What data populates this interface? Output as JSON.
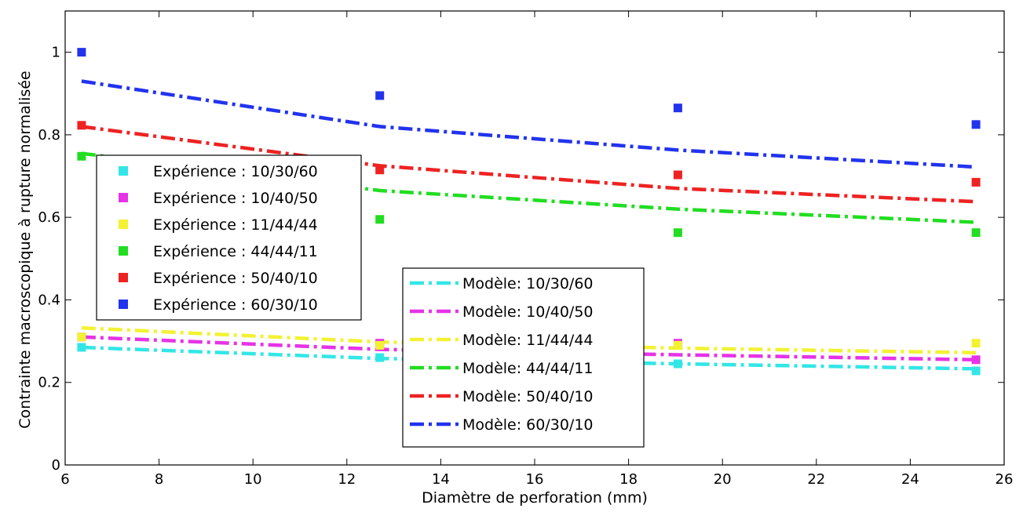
{
  "chart_data": {
    "type": "scatter",
    "title": "",
    "xlabel": "Diamètre de perforation (mm)",
    "ylabel": "Contrainte macroscopique à rupture normalisée",
    "xlim": [
      6,
      26
    ],
    "ylim": [
      0,
      1.1
    ],
    "xticks": [
      6,
      8,
      10,
      12,
      14,
      16,
      18,
      20,
      22,
      24,
      26
    ],
    "yticks": [
      0,
      0.2,
      0.4,
      0.6,
      0.8,
      1
    ],
    "ytick_labels": [
      "0",
      "0.2",
      "0.4",
      "0.6",
      "0.8",
      "1"
    ],
    "grid": false,
    "x": [
      6.35,
      12.7,
      19.05,
      25.4
    ],
    "experiment_series": [
      {
        "name": "Expérience : 10/30/60",
        "color": "#33e6e6",
        "values": [
          0.285,
          0.26,
          0.245,
          0.228
        ]
      },
      {
        "name": "Expérience : 10/40/50",
        "color": "#e633e6",
        "values": [
          0.31,
          0.295,
          0.295,
          0.255
        ]
      },
      {
        "name": "Expérience : 11/44/44",
        "color": "#f2f233",
        "values": [
          0.31,
          0.29,
          0.29,
          0.295
        ]
      },
      {
        "name": "Expérience : 44/44/11",
        "color": "#22dd22",
        "values": [
          0.748,
          0.595,
          0.563,
          0.563
        ]
      },
      {
        "name": "Expérience : 50/40/10",
        "color": "#ee2222",
        "values": [
          0.823,
          0.715,
          0.703,
          0.685
        ]
      },
      {
        "name": "Expérience : 60/30/10",
        "color": "#2233ee",
        "values": [
          1.0,
          0.895,
          0.865,
          0.825
        ]
      }
    ],
    "model_series": [
      {
        "name": "Modèle: 10/30/60",
        "color": "#33e6e6",
        "x": [
          6.35,
          12.7,
          19.05,
          25.4
        ],
        "values": [
          0.285,
          0.258,
          0.245,
          0.233
        ]
      },
      {
        "name": "Modèle: 10/40/50",
        "color": "#e633e6",
        "x": [
          6.35,
          12.7,
          19.05,
          25.4
        ],
        "values": [
          0.31,
          0.28,
          0.267,
          0.255
        ]
      },
      {
        "name": "Modèle: 11/44/44",
        "color": "#f2f233",
        "x": [
          6.35,
          12.7,
          19.05,
          25.4
        ],
        "values": [
          0.332,
          0.298,
          0.283,
          0.272
        ]
      },
      {
        "name": "Modèle: 44/44/11",
        "color": "#22dd22",
        "x": [
          6.35,
          12.7,
          19.05,
          25.4
        ],
        "values": [
          0.755,
          0.665,
          0.62,
          0.588
        ]
      },
      {
        "name": "Modèle: 50/40/10",
        "color": "#ee2222",
        "x": [
          6.35,
          12.7,
          19.05,
          25.4
        ],
        "values": [
          0.82,
          0.725,
          0.67,
          0.638
        ]
      },
      {
        "name": "Modèle: 60/30/10",
        "color": "#2233ee",
        "x": [
          6.35,
          12.7,
          19.05,
          25.4
        ],
        "values": [
          0.93,
          0.82,
          0.763,
          0.722
        ]
      }
    ],
    "legend_experiment_placement": "upper-left",
    "legend_model_placement": "lower-center"
  }
}
